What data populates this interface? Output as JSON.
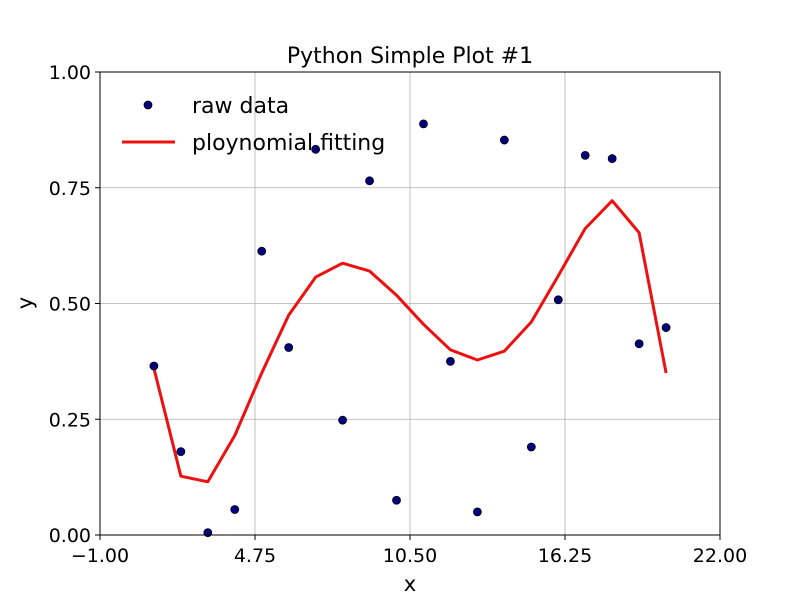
{
  "chart_data": {
    "type": "line",
    "title": "Python Simple Plot #1",
    "xlabel": "x",
    "ylabel": "y",
    "xlim": [
      -1.0,
      22.0
    ],
    "ylim": [
      0.0,
      1.0
    ],
    "xticks": [
      -1.0,
      4.75,
      10.5,
      16.25,
      22.0
    ],
    "xtick_labels": [
      "−1.00",
      "4.75",
      "10.50",
      "16.25",
      "22.00"
    ],
    "yticks": [
      0.0,
      0.25,
      0.5,
      0.75,
      1.0
    ],
    "ytick_labels": [
      "0.00",
      "0.25",
      "0.50",
      "0.75",
      "1.00"
    ],
    "grid": true,
    "legend_position": "top-left",
    "series": [
      {
        "name": "raw data",
        "kind": "scatter",
        "color": "#00007f",
        "edge_color": "#000000",
        "x": [
          1,
          2,
          3,
          4,
          5,
          6,
          7,
          8,
          9,
          10,
          11,
          12,
          13,
          14,
          15,
          16,
          17,
          18,
          19,
          20
        ],
        "y": [
          0.365,
          0.18,
          0.005,
          0.055,
          0.613,
          0.405,
          0.833,
          0.248,
          0.765,
          0.075,
          0.888,
          0.375,
          0.05,
          0.853,
          0.19,
          0.508,
          0.82,
          0.813,
          0.413,
          0.448
        ]
      },
      {
        "name": "ploynomial fitting",
        "kind": "line",
        "color": "#ee1010",
        "x": [
          1,
          2,
          3,
          4,
          5,
          6,
          7,
          8,
          9,
          10,
          11,
          12,
          13,
          14,
          15,
          16,
          17,
          18,
          19,
          20
        ],
        "y": [
          0.36,
          0.127,
          0.115,
          0.215,
          0.35,
          0.475,
          0.557,
          0.587,
          0.57,
          0.518,
          0.455,
          0.4,
          0.378,
          0.397,
          0.46,
          0.56,
          0.662,
          0.722,
          0.653,
          0.35
        ]
      }
    ]
  }
}
